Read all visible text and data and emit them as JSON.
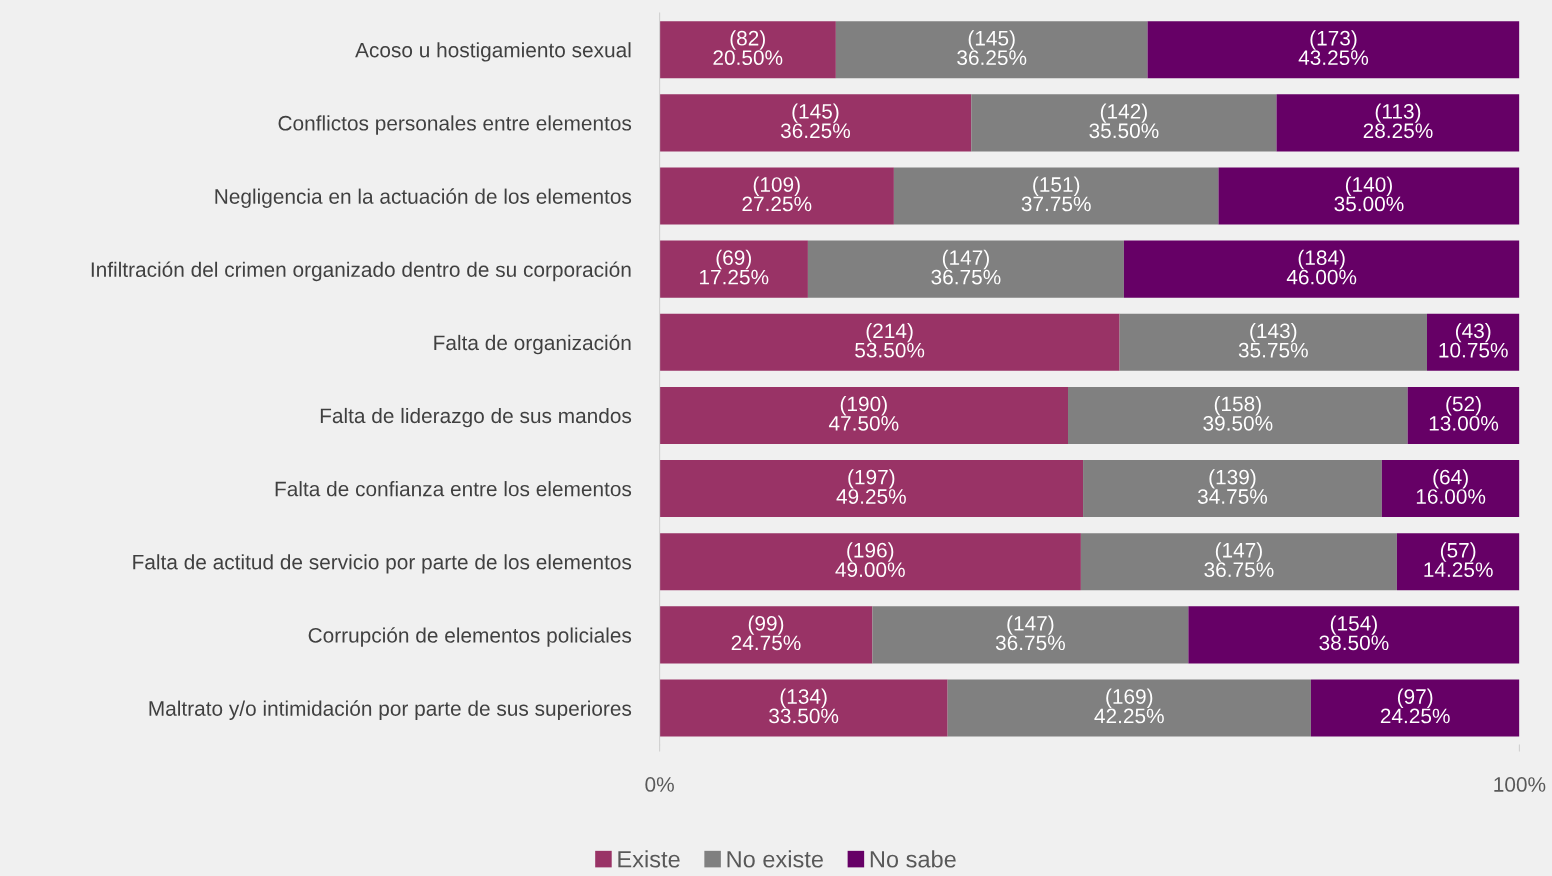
{
  "chart_data": {
    "type": "bar",
    "orientation": "horizontal",
    "stacked": true,
    "categories": [
      "Acoso u hostigamiento sexual",
      "Conflictos personales entre elementos",
      "Negligencia en la actuación de los elementos",
      "Infiltración del crimen organizado dentro de su corporación",
      "Falta de organización",
      "Falta de liderazgo de sus mandos",
      "Falta de confianza entre los elementos",
      "Falta de actitud de servicio por parte de los elementos",
      "Corrupción de elementos policiales",
      "Maltrato y/o intimidación por parte de sus superiores"
    ],
    "series": [
      {
        "name": "Existe",
        "color": "#993366",
        "values": [
          20.5,
          36.25,
          27.25,
          17.25,
          53.5,
          47.5,
          49.25,
          49.0,
          24.75,
          33.5
        ],
        "value_labels": [
          "(82)\n20.50%",
          "(145)\n36.25%",
          "(109)\n27.25%",
          "(69)\n17.25%",
          "(214)\n53.50%",
          "(190)\n47.50%",
          "(197)\n49.25%",
          "(196)\n49.00%",
          "(99)\n24.75%",
          "(134)\n33.50%"
        ]
      },
      {
        "name": "No existe",
        "color": "#808080",
        "values": [
          36.25,
          35.5,
          37.75,
          36.75,
          35.75,
          39.5,
          34.75,
          36.75,
          36.75,
          42.25
        ],
        "value_labels": [
          "(145)\n36.25%",
          "(142)\n35.50%",
          "(151)\n37.75%",
          "(147)\n36.75%",
          "(143)\n35.75%",
          "(158)\n39.50%",
          "(139)\n34.75%",
          "(147)\n36.75%",
          "(147)\n36.75%",
          "(169)\n42.25%"
        ]
      },
      {
        "name": "No sabe",
        "color": "#660066",
        "values": [
          43.25,
          28.25,
          35.0,
          46.0,
          10.75,
          13.0,
          16.0,
          14.25,
          38.5,
          24.25
        ],
        "value_labels": [
          "(173)\n43.25%",
          "(113)\n28.25%",
          "(140)\n35.00%",
          "(184)\n46.00%",
          "(43)\n10.75%",
          "(52)\n13.00%",
          "(64)\n16.00%",
          "(57)\n14.25%",
          "(154)\n38.50%",
          "(97)\n24.25%"
        ]
      }
    ],
    "xlim": [
      0,
      100
    ],
    "xticks": [
      {
        "value": 0,
        "label": "0%"
      },
      {
        "value": 100,
        "label": "100%"
      }
    ],
    "grid": false,
    "legend": "bottom"
  }
}
